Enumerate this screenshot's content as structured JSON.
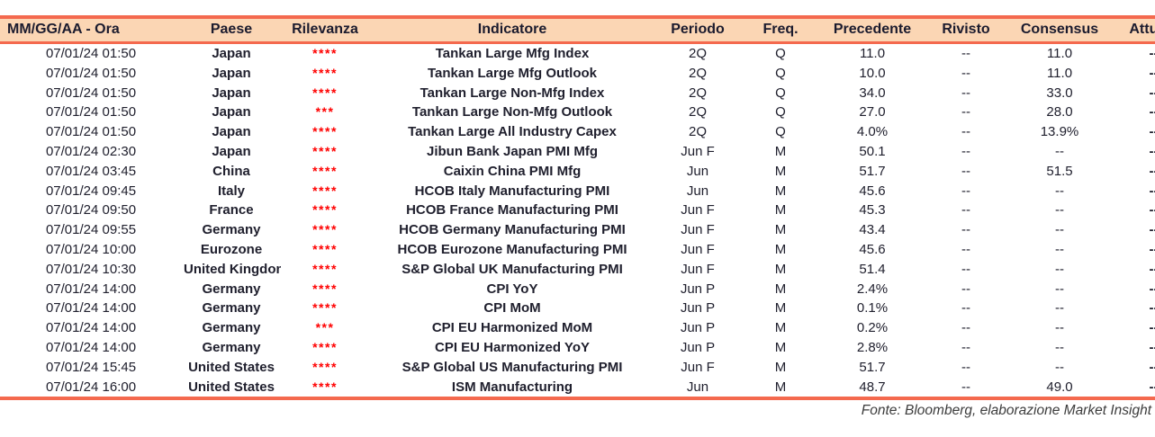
{
  "colors": {
    "accent": "#f4694e",
    "header_bg": "#fbd6b4",
    "header_text": "#1b1b2e",
    "body_text": "#20202e",
    "star": "#ff0000",
    "footer_text": "#3c3c3c"
  },
  "table": {
    "columns": [
      {
        "key": "datetime",
        "label": "MM/GG/AA - Ora"
      },
      {
        "key": "country",
        "label": "Paese"
      },
      {
        "key": "relevance",
        "label": "Rilevanza"
      },
      {
        "key": "indicator",
        "label": "Indicatore"
      },
      {
        "key": "period",
        "label": "Periodo"
      },
      {
        "key": "freq",
        "label": "Freq."
      },
      {
        "key": "previous",
        "label": "Precedente"
      },
      {
        "key": "revised",
        "label": "Rivisto"
      },
      {
        "key": "consensus",
        "label": "Consensus"
      },
      {
        "key": "actual",
        "label": "Attuale"
      }
    ],
    "rows": [
      {
        "datetime": "07/01/24 01:50",
        "country": "Japan",
        "relevance": "****",
        "indicator": "Tankan Large Mfg Index",
        "period": "2Q",
        "freq": "Q",
        "previous": "11.0",
        "revised": "--",
        "consensus": "11.0",
        "actual": "--"
      },
      {
        "datetime": "07/01/24 01:50",
        "country": "Japan",
        "relevance": "****",
        "indicator": "Tankan Large Mfg Outlook",
        "period": "2Q",
        "freq": "Q",
        "previous": "10.0",
        "revised": "--",
        "consensus": "11.0",
        "actual": "--"
      },
      {
        "datetime": "07/01/24 01:50",
        "country": "Japan",
        "relevance": "****",
        "indicator": "Tankan Large Non-Mfg Index",
        "period": "2Q",
        "freq": "Q",
        "previous": "34.0",
        "revised": "--",
        "consensus": "33.0",
        "actual": "--"
      },
      {
        "datetime": "07/01/24 01:50",
        "country": "Japan",
        "relevance": "***",
        "indicator": "Tankan Large Non-Mfg Outlook",
        "period": "2Q",
        "freq": "Q",
        "previous": "27.0",
        "revised": "--",
        "consensus": "28.0",
        "actual": "--"
      },
      {
        "datetime": "07/01/24 01:50",
        "country": "Japan",
        "relevance": "****",
        "indicator": "Tankan Large All Industry Capex",
        "period": "2Q",
        "freq": "Q",
        "previous": "4.0%",
        "revised": "--",
        "consensus": "13.9%",
        "actual": "--"
      },
      {
        "datetime": "07/01/24 02:30",
        "country": "Japan",
        "relevance": "****",
        "indicator": "Jibun Bank Japan PMI Mfg",
        "period": "Jun F",
        "freq": "M",
        "previous": "50.1",
        "revised": "--",
        "consensus": "--",
        "actual": "--"
      },
      {
        "datetime": "07/01/24 03:45",
        "country": "China",
        "relevance": "****",
        "indicator": "Caixin China PMI Mfg",
        "period": "Jun",
        "freq": "M",
        "previous": "51.7",
        "revised": "--",
        "consensus": "51.5",
        "actual": "--"
      },
      {
        "datetime": "07/01/24 09:45",
        "country": "Italy",
        "relevance": "****",
        "indicator": "HCOB Italy Manufacturing PMI",
        "period": "Jun",
        "freq": "M",
        "previous": "45.6",
        "revised": "--",
        "consensus": "--",
        "actual": "--"
      },
      {
        "datetime": "07/01/24 09:50",
        "country": "France",
        "relevance": "****",
        "indicator": "HCOB France Manufacturing PMI",
        "period": "Jun F",
        "freq": "M",
        "previous": "45.3",
        "revised": "--",
        "consensus": "--",
        "actual": "--"
      },
      {
        "datetime": "07/01/24 09:55",
        "country": "Germany",
        "relevance": "****",
        "indicator": "HCOB Germany Manufacturing PMI",
        "period": "Jun F",
        "freq": "M",
        "previous": "43.4",
        "revised": "--",
        "consensus": "--",
        "actual": "--"
      },
      {
        "datetime": "07/01/24 10:00",
        "country": "Eurozone",
        "relevance": "****",
        "indicator": "HCOB Eurozone Manufacturing PMI",
        "period": "Jun F",
        "freq": "M",
        "previous": "45.6",
        "revised": "--",
        "consensus": "--",
        "actual": "--"
      },
      {
        "datetime": "07/01/24 10:30",
        "country": "United Kingdom",
        "relevance": "****",
        "indicator": "S&P Global UK Manufacturing PMI",
        "period": "Jun F",
        "freq": "M",
        "previous": "51.4",
        "revised": "--",
        "consensus": "--",
        "actual": "--"
      },
      {
        "datetime": "07/01/24 14:00",
        "country": "Germany",
        "relevance": "****",
        "indicator": "CPI YoY",
        "period": "Jun P",
        "freq": "M",
        "previous": "2.4%",
        "revised": "--",
        "consensus": "--",
        "actual": "--"
      },
      {
        "datetime": "07/01/24 14:00",
        "country": "Germany",
        "relevance": "****",
        "indicator": "CPI MoM",
        "period": "Jun P",
        "freq": "M",
        "previous": "0.1%",
        "revised": "--",
        "consensus": "--",
        "actual": "--"
      },
      {
        "datetime": "07/01/24 14:00",
        "country": "Germany",
        "relevance": "***",
        "indicator": "CPI EU Harmonized MoM",
        "period": "Jun P",
        "freq": "M",
        "previous": "0.2%",
        "revised": "--",
        "consensus": "--",
        "actual": "--"
      },
      {
        "datetime": "07/01/24 14:00",
        "country": "Germany",
        "relevance": "****",
        "indicator": "CPI EU Harmonized YoY",
        "period": "Jun P",
        "freq": "M",
        "previous": "2.8%",
        "revised": "--",
        "consensus": "--",
        "actual": "--"
      },
      {
        "datetime": "07/01/24 15:45",
        "country": "United States",
        "relevance": "****",
        "indicator": "S&P Global US Manufacturing PMI",
        "period": "Jun F",
        "freq": "M",
        "previous": "51.7",
        "revised": "--",
        "consensus": "--",
        "actual": "--"
      },
      {
        "datetime": "07/01/24 16:00",
        "country": "United States",
        "relevance": "****",
        "indicator": "ISM Manufacturing",
        "period": "Jun",
        "freq": "M",
        "previous": "48.7",
        "revised": "--",
        "consensus": "49.0",
        "actual": "--"
      }
    ]
  },
  "footer": {
    "source_label": "Fonte: Bloomberg, elaborazione Market Insight"
  }
}
